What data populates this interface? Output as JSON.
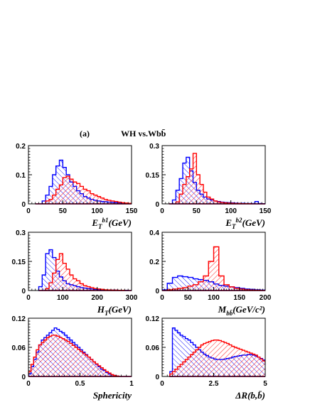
{
  "figure": {
    "panel_label": "(a)",
    "title": "WH vs.Wbb̄"
  },
  "colors": {
    "wh": "#ff0000",
    "wbb": "#0000ff",
    "axis": "#000000"
  },
  "chart_data": [
    {
      "id": "et_b1",
      "type": "histogram",
      "xlabel": "E_T^b1(GeV)",
      "xlim": [
        0,
        150
      ],
      "ylim": [
        0,
        0.2
      ],
      "xticks": [
        "0",
        "50",
        "100",
        "150"
      ],
      "yticks": [
        "0",
        "0.1",
        "0.2"
      ],
      "bin_width": 5,
      "x_start": 10,
      "series": [
        {
          "key": "wbb",
          "style": "hatch-back",
          "values": [
            0.0,
            0.0,
            0.01,
            0.03,
            0.06,
            0.1,
            0.13,
            0.15,
            0.125,
            0.1,
            0.075,
            0.06,
            0.045,
            0.035,
            0.025,
            0.02,
            0.015,
            0.012,
            0.01,
            0.008,
            0.007,
            0.006,
            0.005,
            0.004,
            0.003,
            0.003,
            0.002,
            0.002
          ]
        },
        {
          "key": "wh",
          "style": "hatch-fwd",
          "values": [
            0.0,
            0.0,
            0.0,
            0.01,
            0.015,
            0.03,
            0.05,
            0.065,
            0.09,
            0.095,
            0.085,
            0.075,
            0.07,
            0.06,
            0.05,
            0.045,
            0.035,
            0.03,
            0.025,
            0.02,
            0.015,
            0.012,
            0.01,
            0.008,
            0.006,
            0.004,
            0.003,
            0.002
          ]
        }
      ]
    },
    {
      "id": "et_b2",
      "type": "histogram",
      "xlabel": "E_T^b2(GeV)",
      "xlim": [
        0,
        150
      ],
      "ylim": [
        0,
        0.3
      ],
      "xticks": [
        "0",
        "50",
        "100",
        "150"
      ],
      "yticks": [
        "0",
        "0.15",
        "0.3"
      ],
      "bin_width": 5,
      "x_start": 10,
      "series": [
        {
          "key": "wbb",
          "style": "hatch-back",
          "values": [
            0.0,
            0.02,
            0.07,
            0.13,
            0.21,
            0.24,
            0.17,
            0.11,
            0.07,
            0.05,
            0.035,
            0.025,
            0.02,
            0.015,
            0.012,
            0.009,
            0.007,
            0.006,
            0.005,
            0.004,
            0.003,
            0.003,
            0.002,
            0.002,
            0.002,
            0.012,
            0.002,
            0.001
          ]
        },
        {
          "key": "wh",
          "style": "hatch-fwd",
          "values": [
            0.0,
            0.0,
            0.01,
            0.05,
            0.1,
            0.14,
            0.18,
            0.26,
            0.15,
            0.1,
            0.06,
            0.035,
            0.025,
            0.015,
            0.01,
            0.007,
            0.005,
            0.004,
            0.003,
            0.002,
            0.002,
            0.001,
            0.001,
            0.001,
            0.0,
            0.0,
            0.0,
            0.0
          ]
        }
      ]
    },
    {
      "id": "ht",
      "type": "histogram",
      "xlabel": "H_T(GeV)",
      "xlim": [
        0,
        300
      ],
      "ylim": [
        0,
        0.3
      ],
      "xticks": [
        "0",
        "100",
        "200",
        "300"
      ],
      "yticks": [
        "0",
        "0.15",
        "0.3"
      ],
      "bin_width": 10,
      "x_start": 30,
      "series": [
        {
          "key": "wbb",
          "style": "hatch-back",
          "values": [
            0.02,
            0.08,
            0.19,
            0.21,
            0.17,
            0.1,
            0.07,
            0.05,
            0.035,
            0.03,
            0.025,
            0.02,
            0.015,
            0.012,
            0.01,
            0.008,
            0.006,
            0.005,
            0.004,
            0.003,
            0.003,
            0.002,
            0.002,
            0.001,
            0.001,
            0.001,
            0.0
          ]
        },
        {
          "key": "wh",
          "style": "hatch-fwd",
          "values": [
            0.0,
            0.0,
            0.01,
            0.04,
            0.09,
            0.16,
            0.19,
            0.14,
            0.11,
            0.08,
            0.06,
            0.05,
            0.035,
            0.025,
            0.02,
            0.015,
            0.01,
            0.008,
            0.006,
            0.004,
            0.003,
            0.002,
            0.002,
            0.001,
            0.001,
            0.0,
            0.0
          ]
        }
      ]
    },
    {
      "id": "mbb",
      "type": "histogram",
      "xlabel": "M_bb̄(GeV/c²)",
      "xlim": [
        0,
        200
      ],
      "ylim": [
        0,
        0.4
      ],
      "xticks": [
        "0",
        "50",
        "100",
        "150",
        "200"
      ],
      "yticks": [
        "0",
        "0.2",
        "0.4"
      ],
      "bin_width": 10,
      "x_start": 0,
      "series": [
        {
          "key": "wbb",
          "style": "hatch-back",
          "values": [
            0.005,
            0.05,
            0.09,
            0.1,
            0.095,
            0.09,
            0.08,
            0.075,
            0.07,
            0.06,
            0.045,
            0.035,
            0.03,
            0.025,
            0.02,
            0.015,
            0.01,
            0.008,
            0.005,
            0.003
          ]
        },
        {
          "key": "wh",
          "style": "hatch-fwd",
          "values": [
            0.0,
            0.005,
            0.01,
            0.015,
            0.02,
            0.03,
            0.04,
            0.06,
            0.1,
            0.2,
            0.3,
            0.1,
            0.04,
            0.025,
            0.015,
            0.01,
            0.005,
            0.003,
            0.002,
            0.001
          ]
        }
      ]
    },
    {
      "id": "sphericity",
      "type": "histogram",
      "xlabel": "Sphericity",
      "xlim": [
        0,
        1
      ],
      "ylim": [
        0,
        0.12
      ],
      "xticks": [
        "0",
        "0.5",
        "1"
      ],
      "yticks": [
        "0",
        "0.06",
        "0.12"
      ],
      "bin_width": 0.025,
      "x_start": 0,
      "series": [
        {
          "key": "wbb",
          "style": "hatch-back",
          "values": [
            0.005,
            0.02,
            0.035,
            0.05,
            0.065,
            0.075,
            0.08,
            0.085,
            0.09,
            0.095,
            0.1,
            0.097,
            0.093,
            0.09,
            0.085,
            0.08,
            0.075,
            0.07,
            0.065,
            0.06,
            0.055,
            0.05,
            0.045,
            0.04,
            0.035,
            0.03,
            0.025,
            0.02,
            0.015,
            0.012,
            0.008,
            0.005,
            0.003,
            0.002,
            0.001,
            0.0,
            0.0,
            0.0,
            0.0,
            0.0
          ]
        },
        {
          "key": "wh",
          "style": "hatch-fwd",
          "values": [
            0.01,
            0.025,
            0.04,
            0.055,
            0.065,
            0.07,
            0.075,
            0.08,
            0.083,
            0.085,
            0.085,
            0.083,
            0.08,
            0.078,
            0.075,
            0.072,
            0.068,
            0.064,
            0.06,
            0.056,
            0.052,
            0.048,
            0.044,
            0.04,
            0.035,
            0.03,
            0.026,
            0.022,
            0.018,
            0.014,
            0.01,
            0.007,
            0.004,
            0.002,
            0.001,
            0.0,
            0.0,
            0.0,
            0.0,
            0.0
          ]
        }
      ]
    },
    {
      "id": "delta_r",
      "type": "histogram",
      "xlabel": "ΔR(b,b̄)",
      "xlim": [
        0,
        5
      ],
      "ylim": [
        0,
        0.12
      ],
      "xticks": [
        "0",
        "2.5",
        "5"
      ],
      "yticks": [
        "0",
        "0.06",
        "0.12"
      ],
      "bin_width": 0.125,
      "x_start": 0.375,
      "series": [
        {
          "key": "wbb",
          "style": "hatch-back",
          "values": [
            0.01,
            0.1,
            0.095,
            0.09,
            0.085,
            0.082,
            0.078,
            0.075,
            0.07,
            0.065,
            0.06,
            0.055,
            0.05,
            0.046,
            0.043,
            0.04,
            0.038,
            0.036,
            0.035,
            0.035,
            0.035,
            0.036,
            0.037,
            0.038,
            0.04,
            0.041,
            0.042,
            0.043,
            0.044,
            0.044,
            0.045,
            0.045,
            0.044,
            0.042,
            0.04,
            0.037,
            0.034,
            0.03
          ]
        },
        {
          "key": "wh",
          "style": "hatch-fwd",
          "values": [
            0.005,
            0.01,
            0.015,
            0.02,
            0.025,
            0.03,
            0.035,
            0.04,
            0.045,
            0.05,
            0.055,
            0.06,
            0.065,
            0.068,
            0.07,
            0.072,
            0.074,
            0.075,
            0.075,
            0.074,
            0.072,
            0.07,
            0.068,
            0.065,
            0.062,
            0.06,
            0.058,
            0.056,
            0.054,
            0.052,
            0.05,
            0.048,
            0.046,
            0.044,
            0.04,
            0.036,
            0.032,
            0.028
          ]
        }
      ]
    }
  ]
}
